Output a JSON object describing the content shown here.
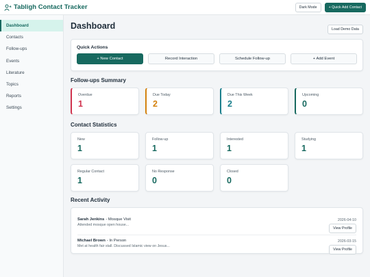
{
  "header": {
    "title": "Tabligh Contact Tracker",
    "dark_mode": "Dark Mode",
    "quick_add": "+ Quick Add Contact"
  },
  "sidebar": [
    "Dashboard",
    "Contacts",
    "Follow-ups",
    "Events",
    "Literature",
    "Topics",
    "Reports",
    "Settings"
  ],
  "page_title": "Dashboard",
  "load_demo": "Load Demo Data",
  "quick_actions": {
    "title": "Quick Actions",
    "buttons": [
      "+ New Contact",
      "Record Interaction",
      "Schedule Follow-up",
      "+ Add Event"
    ]
  },
  "followups": {
    "title": "Follow-ups Summary",
    "cards": [
      {
        "label": "Overdue",
        "value": 1,
        "color": "#d0334e"
      },
      {
        "label": "Due Today",
        "value": 2,
        "color": "#d4820f"
      },
      {
        "label": "Due This Week",
        "value": 2,
        "color": "#1a7f8c"
      },
      {
        "label": "Upcoming",
        "value": 0,
        "color": "#17695f"
      }
    ]
  },
  "stats": {
    "title": "Contact Statistics",
    "cards": [
      {
        "label": "New",
        "value": 1
      },
      {
        "label": "Follow-up",
        "value": 1
      },
      {
        "label": "Interested",
        "value": 1
      },
      {
        "label": "Studying",
        "value": 1
      },
      {
        "label": "Regular Contact",
        "value": 1
      },
      {
        "label": "No Response",
        "value": 0
      },
      {
        "label": "Closed",
        "value": 0
      }
    ]
  },
  "activity": {
    "title": "Recent Activity",
    "items": [
      {
        "name": "Sarah Jenkins",
        "type": "- Mosque Visit",
        "note": "Attended mosque open house...",
        "date": "2026-04-10",
        "action": "View Profile"
      },
      {
        "name": "Michael Brown",
        "type": "- In Person",
        "note": "Met at health fair stall. Discussed Islamic view on Jesus...",
        "date": "2026-03-15",
        "action": "View Profile"
      }
    ]
  }
}
